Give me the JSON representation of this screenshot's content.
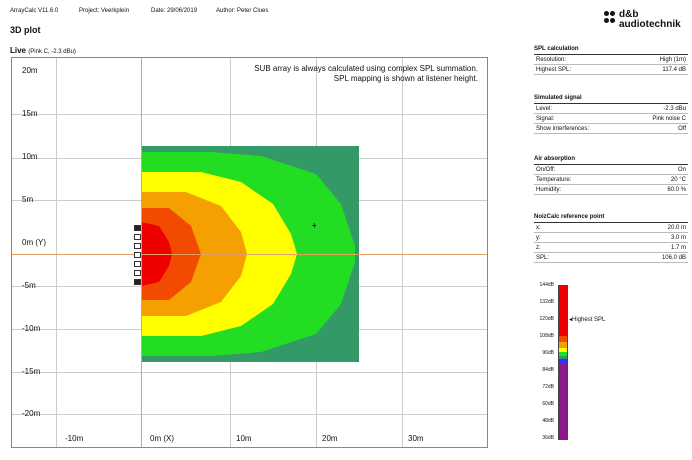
{
  "header": {
    "app": "ArrayCalc V11.6.0",
    "project": "Project: Veerkplein",
    "date": "Date: 29/06/2019",
    "author": "Author: Peter Clues"
  },
  "logo": {
    "line1": "d&b",
    "line2": "audiotechnik"
  },
  "title": "3D plot",
  "subtitle": {
    "mode": "Live",
    "detail": "(Pink C, -2.3 dBu)"
  },
  "plot": {
    "note_line1": "SUB array is always calculated using complex SPL summation.",
    "note_line2": "SPL mapping is shown at listener height.",
    "y_labels": [
      "20m",
      "15m",
      "10m",
      "5m",
      "0m (Y)",
      "-5m",
      "-10m",
      "-15m",
      "-20m"
    ],
    "x_labels": [
      "-10m",
      "0m (X)",
      "10m",
      "20m",
      "30m"
    ],
    "target_marker": "+"
  },
  "spl_calc": {
    "heading": "SPL calculation",
    "rows": [
      {
        "label": "Resolution:",
        "value": "High (1m)"
      },
      {
        "label": "Highest SPL:",
        "value": "117.4 dB"
      }
    ]
  },
  "simulated_signal": {
    "heading": "Simulated signal",
    "rows": [
      {
        "label": "Level:",
        "value": "-2.3 dBu"
      },
      {
        "label": "Signal:",
        "value": "Pink noise C"
      },
      {
        "label": "Show interferences:",
        "value": "Off"
      }
    ]
  },
  "air_absorption": {
    "heading": "Air absorption",
    "rows": [
      {
        "label": "On/Off:",
        "value": "On"
      },
      {
        "label": "Temperature:",
        "value": "20 °C"
      },
      {
        "label": "Humidity:",
        "value": "60.0 %"
      }
    ]
  },
  "noizcalc": {
    "heading": "NoizCalc reference point",
    "rows": [
      {
        "label": "x:",
        "value": "20.0 m"
      },
      {
        "label": "y:",
        "value": "3.0 m"
      },
      {
        "label": "z:",
        "value": "1.7 m"
      },
      {
        "label": "SPL:",
        "value": "106.0 dB"
      }
    ]
  },
  "color_scale": {
    "labels": [
      "144dB",
      "132dB",
      "120dB",
      "108dB",
      "96dB",
      "84dB",
      "72dB",
      "60dB",
      "48dB",
      "36dB"
    ],
    "highest_label": "Highest SPL",
    "colors": {
      "red": "#ee0000",
      "orange_red": "#f24a00",
      "orange": "#f5a000",
      "yellow": "#ffff00",
      "green": "#22dd22",
      "dark_green": "#339966",
      "blue": "#3030ff",
      "purple": "#8a1a8a"
    }
  }
}
